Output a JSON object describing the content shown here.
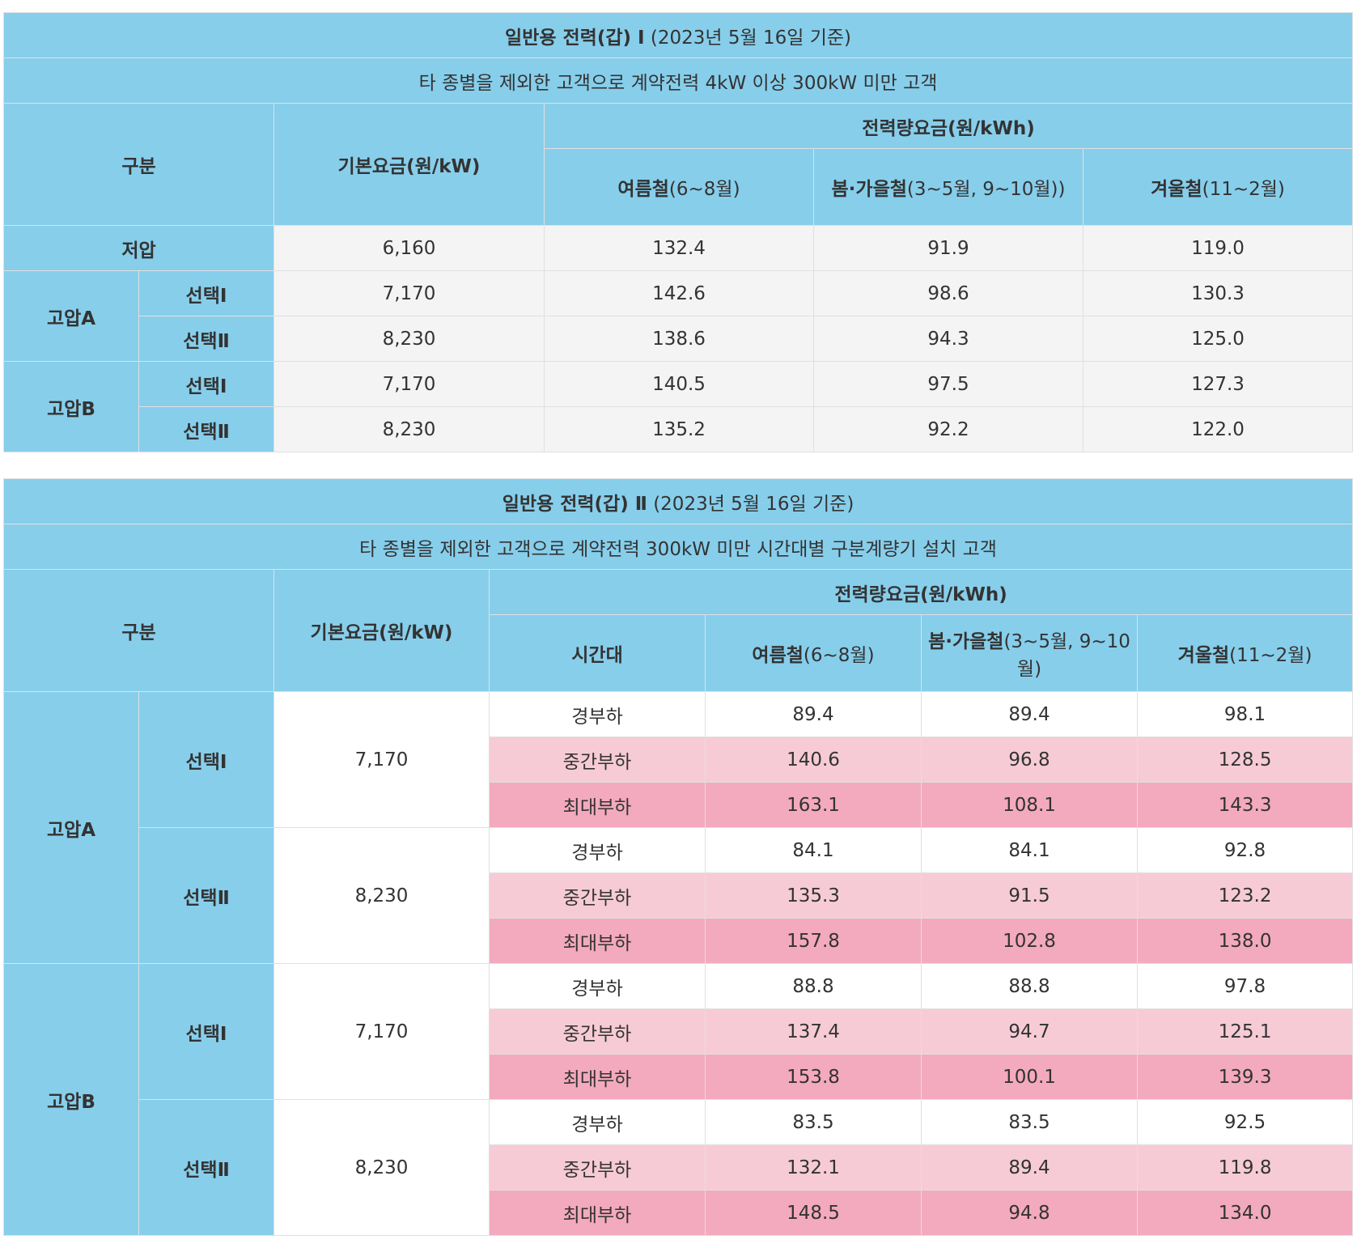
{
  "table1": {
    "title_bold": "일반용 전력(갑) Ⅰ",
    "title_suffix": "(2023년 5월 16일 기준)",
    "subtitle": "타 종별을 제외한 고객으로 계약전력 4kW 이상 300kW 미만 고객",
    "header": {
      "category": "구분",
      "base_fee": "기본요금(원/kW)",
      "energy_fee": "전력량요금(원/kWh)",
      "summer_bold": "여름철",
      "summer_suffix": "(6~8월)",
      "spring_fall_bold": "봄·가을철",
      "spring_fall_suffix": "(3~5월, 9~10월))",
      "winter_bold": "겨울철",
      "winter_suffix": "(11~2월)"
    },
    "rows": [
      {
        "group": "저압",
        "option": "",
        "base": "6,160",
        "summer": "132.4",
        "spring_fall": "91.9",
        "winter": "119.0"
      },
      {
        "group": "고압A",
        "option": "선택Ⅰ",
        "base": "7,170",
        "summer": "142.6",
        "spring_fall": "98.6",
        "winter": "130.3"
      },
      {
        "group": "",
        "option": "선택Ⅱ",
        "base": "8,230",
        "summer": "138.6",
        "spring_fall": "94.3",
        "winter": "125.0"
      },
      {
        "group": "고압B",
        "option": "선택Ⅰ",
        "base": "7,170",
        "summer": "140.5",
        "spring_fall": "97.5",
        "winter": "127.3"
      },
      {
        "group": "",
        "option": "선택Ⅱ",
        "base": "8,230",
        "summer": "135.2",
        "spring_fall": "92.2",
        "winter": "122.0"
      }
    ]
  },
  "table2": {
    "title_bold": "일반용 전력(갑) Ⅱ",
    "title_suffix": "(2023년 5월 16일 기준)",
    "subtitle": "타 종별을 제외한 고객으로 계약전력 300kW 미만 시간대별 구분계량기 설치 고객",
    "header": {
      "category": "구분",
      "base_fee": "기본요금(원/kW)",
      "energy_fee": "전력량요금(원/kWh)",
      "time_slot": "시간대",
      "summer_bold": "여름철",
      "summer_suffix": "(6~8월)",
      "spring_fall_bold": "봄·가을철",
      "spring_fall_suffix": "(3~5월, 9~10월)",
      "winter_bold": "겨울철",
      "winter_suffix": "(11~2월)"
    },
    "groups": [
      {
        "group": "고압A",
        "options": [
          {
            "option": "선택Ⅰ",
            "base": "7,170",
            "slots": [
              {
                "slot": "경부하",
                "summer": "89.4",
                "spring_fall": "89.4",
                "winter": "98.1"
              },
              {
                "slot": "중간부하",
                "summer": "140.6",
                "spring_fall": "96.8",
                "winter": "128.5"
              },
              {
                "slot": "최대부하",
                "summer": "163.1",
                "spring_fall": "108.1",
                "winter": "143.3"
              }
            ]
          },
          {
            "option": "선택Ⅱ",
            "base": "8,230",
            "slots": [
              {
                "slot": "경부하",
                "summer": "84.1",
                "spring_fall": "84.1",
                "winter": "92.8"
              },
              {
                "slot": "중간부하",
                "summer": "135.3",
                "spring_fall": "91.5",
                "winter": "123.2"
              },
              {
                "slot": "최대부하",
                "summer": "157.8",
                "spring_fall": "102.8",
                "winter": "138.0"
              }
            ]
          }
        ]
      },
      {
        "group": "고압B",
        "options": [
          {
            "option": "선택Ⅰ",
            "base": "7,170",
            "slots": [
              {
                "slot": "경부하",
                "summer": "88.8",
                "spring_fall": "88.8",
                "winter": "97.8"
              },
              {
                "slot": "중간부하",
                "summer": "137.4",
                "spring_fall": "94.7",
                "winter": "125.1"
              },
              {
                "slot": "최대부하",
                "summer": "153.8",
                "spring_fall": "100.1",
                "winter": "139.3"
              }
            ]
          },
          {
            "option": "선택Ⅱ",
            "base": "8,230",
            "slots": [
              {
                "slot": "경부하",
                "summer": "83.5",
                "spring_fall": "83.5",
                "winter": "92.5"
              },
              {
                "slot": "중간부하",
                "summer": "132.1",
                "spring_fall": "89.4",
                "winter": "119.8"
              },
              {
                "slot": "최대부하",
                "summer": "148.5",
                "spring_fall": "94.8",
                "winter": "134.0"
              }
            ]
          }
        ]
      }
    ]
  },
  "colors": {
    "header_bg": "#87CEEB",
    "gray_bg": "#f4f4f4",
    "mid_load_bg": "#F6CBD6",
    "peak_load_bg": "#F3A9BE"
  }
}
